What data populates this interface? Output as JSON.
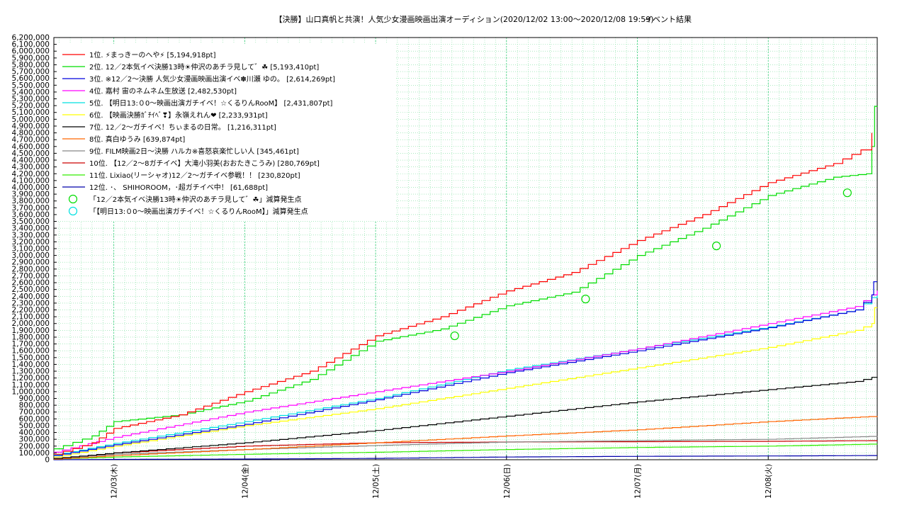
{
  "chart_data": {
    "type": "line",
    "title": "【決勝】山口真帆と共演！人気少女漫画映画出演オーディション(2020/12/02 13:00〜2020/12/08 19:59)",
    "subtitle": "イベント結果",
    "xlabel": "",
    "ylabel": "",
    "xlim": [
      "2020-12-02 13:00",
      "2020-12-08 19:59"
    ],
    "ylim": [
      0,
      6200000
    ],
    "y_tick_step": 100000,
    "x_tick_labels": [
      {
        "x": "2020-12-03 00:00",
        "label": "12/03(木)"
      },
      {
        "x": "2020-12-04 00:00",
        "label": "12/04(金)"
      },
      {
        "x": "2020-12-05 00:00",
        "label": "12/05(土)"
      },
      {
        "x": "2020-12-06 00:00",
        "label": "12/06(日)"
      },
      {
        "x": "2020-12-07 00:00",
        "label": "12/07(月)"
      },
      {
        "x": "2020-12-08 00:00",
        "label": "12/08(火)"
      }
    ],
    "grid": true,
    "legend_position": "top-left",
    "series": [
      {
        "name": "1位. ⚡まっきーのへや⚡ [5,194,918pt]",
        "color": "#ff0000",
        "points": [
          [
            "2020-12-02 13:00",
            80000
          ],
          [
            "2020-12-02 20:00",
            250000
          ],
          [
            "2020-12-03 00:00",
            460000
          ],
          [
            "2020-12-03 12:00",
            660000
          ],
          [
            "2020-12-04 00:00",
            1000000
          ],
          [
            "2020-12-04 12:00",
            1300000
          ],
          [
            "2020-12-05 00:00",
            1820000
          ],
          [
            "2020-12-05 12:00",
            2100000
          ],
          [
            "2020-12-06 00:00",
            2480000
          ],
          [
            "2020-12-06 12:00",
            2750000
          ],
          [
            "2020-12-07 00:00",
            3220000
          ],
          [
            "2020-12-07 12:00",
            3600000
          ],
          [
            "2020-12-08 00:00",
            4070000
          ],
          [
            "2020-12-08 12:00",
            4350000
          ],
          [
            "2020-12-08 17:00",
            4550000
          ],
          [
            "2020-12-08 19:00",
            4800000
          ]
        ]
      },
      {
        "name": "2位. 12／2本気イベ決勝13時☀仲沢のあチラ見して゛☘ [5,193,410pt]",
        "color": "#00dd00",
        "points": [
          [
            "2020-12-02 13:00",
            160000
          ],
          [
            "2020-12-02 20:00",
            350000
          ],
          [
            "2020-12-03 00:00",
            560000
          ],
          [
            "2020-12-03 12:00",
            660000
          ],
          [
            "2020-12-04 00:00",
            860000
          ],
          [
            "2020-12-04 12:00",
            1180000
          ],
          [
            "2020-12-05 00:00",
            1740000
          ],
          [
            "2020-12-05 12:00",
            1920000
          ],
          [
            "2020-12-06 00:00",
            2260000
          ],
          [
            "2020-12-06 12:00",
            2460000
          ],
          [
            "2020-12-07 00:00",
            3000000
          ],
          [
            "2020-12-07 12:00",
            3400000
          ],
          [
            "2020-12-08 00:00",
            3880000
          ],
          [
            "2020-12-08 12:00",
            4150000
          ],
          [
            "2020-12-08 18:00",
            4200000
          ],
          [
            "2020-12-08 19:00",
            4600000
          ],
          [
            "2020-12-08 19:30",
            5190000
          ],
          [
            "2020-12-08 19:59",
            5193410
          ]
        ]
      },
      {
        "name": "3位. ※12／2〜決勝 人気少女漫画映画出演イベ✽川瀬 ゆの。 [2,614,269pt]",
        "color": "#0000dd",
        "points": [
          [
            "2020-12-02 13:00",
            60000
          ],
          [
            "2020-12-03 00:00",
            220000
          ],
          [
            "2020-12-04 00:00",
            520000
          ],
          [
            "2020-12-05 00:00",
            880000
          ],
          [
            "2020-12-06 00:00",
            1280000
          ],
          [
            "2020-12-07 00:00",
            1600000
          ],
          [
            "2020-12-08 00:00",
            1940000
          ],
          [
            "2020-12-08 16:00",
            2200000
          ],
          [
            "2020-12-08 19:00",
            2420000
          ],
          [
            "2020-12-08 19:20",
            2614269
          ],
          [
            "2020-12-08 19:59",
            2614269
          ]
        ]
      },
      {
        "name": "4位. 嘉村 宙のネムネム生放送 [2,482,530pt]",
        "color": "#ff00ff",
        "points": [
          [
            "2020-12-02 13:00",
            110000
          ],
          [
            "2020-12-03 00:00",
            330000
          ],
          [
            "2020-12-04 00:00",
            700000
          ],
          [
            "2020-12-05 00:00",
            1000000
          ],
          [
            "2020-12-06 00:00",
            1300000
          ],
          [
            "2020-12-07 00:00",
            1630000
          ],
          [
            "2020-12-08 00:00",
            2000000
          ],
          [
            "2020-12-08 16:00",
            2250000
          ],
          [
            "2020-12-08 19:00",
            2420000
          ],
          [
            "2020-12-08 19:59",
            2482530
          ]
        ]
      },
      {
        "name": "5位. 【明日13:０0〜映画出演ガチイベ！☆くるりんRooM】 [2,431,807pt]",
        "color": "#00e0e0",
        "points": [
          [
            "2020-12-02 13:00",
            70000
          ],
          [
            "2020-12-03 00:00",
            240000
          ],
          [
            "2020-12-04 00:00",
            560000
          ],
          [
            "2020-12-05 00:00",
            900000
          ],
          [
            "2020-12-06 00:00",
            1320000
          ],
          [
            "2020-12-07 00:00",
            1630000
          ],
          [
            "2020-12-08 00:00",
            1950000
          ],
          [
            "2020-12-08 16:00",
            2200000
          ],
          [
            "2020-12-08 19:00",
            2380000
          ],
          [
            "2020-12-08 19:59",
            2431807
          ]
        ]
      },
      {
        "name": "6位. 【映画決勝ｶﾞﾁｲﾍﾞ❣】永嶺えれん❤ [2,233,931pt]",
        "color": "#ffff00",
        "points": [
          [
            "2020-12-02 13:00",
            40000
          ],
          [
            "2020-12-03 00:00",
            200000
          ],
          [
            "2020-12-04 00:00",
            500000
          ],
          [
            "2020-12-05 00:00",
            750000
          ],
          [
            "2020-12-06 00:00",
            1050000
          ],
          [
            "2020-12-07 00:00",
            1350000
          ],
          [
            "2020-12-08 00:00",
            1650000
          ],
          [
            "2020-12-08 16:00",
            1900000
          ],
          [
            "2020-12-08 19:00",
            2000000
          ],
          [
            "2020-12-08 19:30",
            2233931
          ],
          [
            "2020-12-08 19:59",
            2233931
          ]
        ]
      },
      {
        "name": "7位. 12／2〜ガチイベ！ちぃまるの日常。 [1,216,311pt]",
        "color": "#000000",
        "points": [
          [
            "2020-12-02 13:00",
            20000
          ],
          [
            "2020-12-03 00:00",
            100000
          ],
          [
            "2020-12-04 00:00",
            250000
          ],
          [
            "2020-12-05 00:00",
            430000
          ],
          [
            "2020-12-06 00:00",
            640000
          ],
          [
            "2020-12-07 00:00",
            850000
          ],
          [
            "2020-12-08 00:00",
            1030000
          ],
          [
            "2020-12-08 16:00",
            1150000
          ],
          [
            "2020-12-08 19:00",
            1210000
          ],
          [
            "2020-12-08 19:59",
            1216311
          ]
        ]
      },
      {
        "name": "8位. 真白ゆうみ [639,874pt]",
        "color": "#ff6600",
        "points": [
          [
            "2020-12-02 13:00",
            10000
          ],
          [
            "2020-12-03 00:00",
            60000
          ],
          [
            "2020-12-04 00:00",
            150000
          ],
          [
            "2020-12-05 00:00",
            250000
          ],
          [
            "2020-12-06 00:00",
            350000
          ],
          [
            "2020-12-07 00:00",
            440000
          ],
          [
            "2020-12-08 00:00",
            560000
          ],
          [
            "2020-12-08 19:59",
            639874
          ]
        ]
      },
      {
        "name": "9位. FILM映画2日〜決勝 ハルカ※喜怒哀楽忙しい人 [345,461pt]",
        "color": "#888888",
        "points": [
          [
            "2020-12-02 13:00",
            20000
          ],
          [
            "2020-12-03 00:00",
            80000
          ],
          [
            "2020-12-04 00:00",
            150000
          ],
          [
            "2020-12-05 00:00",
            210000
          ],
          [
            "2020-12-06 00:00",
            260000
          ],
          [
            "2020-12-07 00:00",
            280000
          ],
          [
            "2020-12-08 00:00",
            300000
          ],
          [
            "2020-12-08 19:59",
            345461
          ]
        ]
      },
      {
        "name": "10位. 【12／2〜8ガチイベ】大滝小羽美(おおたきこうみ) [280,769pt]",
        "color": "#cc0000",
        "points": [
          [
            "2020-12-02 13:00",
            10000
          ],
          [
            "2020-12-03 00:00",
            100000
          ],
          [
            "2020-12-04 00:00",
            200000
          ],
          [
            "2020-12-05 00:00",
            250000
          ],
          [
            "2020-12-06 00:00",
            260000
          ],
          [
            "2020-12-07 00:00",
            265000
          ],
          [
            "2020-12-08 00:00",
            270000
          ],
          [
            "2020-12-08 19:59",
            280769
          ]
        ]
      },
      {
        "name": "11位. Lixiao(リーシャオ)12／2〜ガチイベ参戦！！ [230,820pt]",
        "color": "#33ee00",
        "points": [
          [
            "2020-12-02 13:00",
            10000
          ],
          [
            "2020-12-03 00:00",
            40000
          ],
          [
            "2020-12-04 00:00",
            80000
          ],
          [
            "2020-12-05 00:00",
            110000
          ],
          [
            "2020-12-06 00:00",
            150000
          ],
          [
            "2020-12-07 00:00",
            180000
          ],
          [
            "2020-12-08 00:00",
            200000
          ],
          [
            "2020-12-08 19:59",
            230820
          ]
        ]
      },
      {
        "name": "12位. ･、 SHIHOROOM，･超ガチイベ中！ [61,688pt]",
        "color": "#0000aa",
        "points": [
          [
            "2020-12-02 13:00",
            0
          ],
          [
            "2020-12-03 00:00",
            5000
          ],
          [
            "2020-12-04 00:00",
            10000
          ],
          [
            "2020-12-05 00:00",
            20000
          ],
          [
            "2020-12-06 00:00",
            40000
          ],
          [
            "2020-12-07 00:00",
            50000
          ],
          [
            "2020-12-08 00:00",
            55000
          ],
          [
            "2020-12-08 19:59",
            61688
          ]
        ]
      }
    ],
    "annotations": [
      {
        "name": "「12／2本気イベ決勝13時☀仲沢のあチラ見して゛☘」減算発生点",
        "color": "#00dd00",
        "marker": "circle",
        "points": [
          [
            "2020-12-05 14:30",
            1820000
          ],
          [
            "2020-12-06 14:30",
            2360000
          ],
          [
            "2020-12-07 14:30",
            3140000
          ],
          [
            "2020-12-08 14:30",
            3920000
          ]
        ]
      },
      {
        "name": "「【明日13:０0〜映画出演ガチイベ！☆くるりんRooM】」減算発生点",
        "color": "#00e0e0",
        "marker": "circle",
        "points": []
      }
    ]
  }
}
